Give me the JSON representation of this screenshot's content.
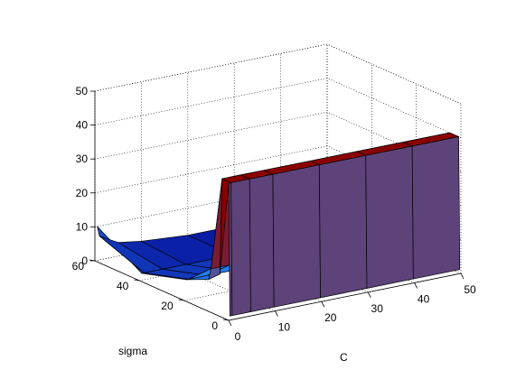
{
  "chart_data": {
    "type": "surface3d",
    "xlabel": "C",
    "ylabel": "sigma",
    "zlabel": "",
    "x_ticks": [
      0,
      10,
      20,
      30,
      40,
      50
    ],
    "y_ticks": [
      0,
      20,
      40,
      60
    ],
    "z_ticks": [
      0,
      10,
      20,
      30,
      40,
      50
    ],
    "xlim": [
      0,
      50
    ],
    "ylim": [
      0,
      60
    ],
    "zlim": [
      0,
      50
    ],
    "grid": true,
    "colormap_low": "#00008c",
    "colormap_mid": "#2b8cff",
    "colormap_high": "#8b0000",
    "surface_x": [
      0.5,
      1,
      5,
      10,
      20,
      30,
      40,
      50
    ],
    "surface_y": [
      0.5,
      1,
      5,
      10,
      20,
      40,
      60
    ],
    "surface_z": [
      [
        1,
        1,
        1,
        1,
        1,
        1,
        1,
        1
      ],
      [
        40,
        40,
        40,
        40,
        40,
        40,
        40,
        40
      ],
      [
        12,
        40,
        40,
        40,
        40,
        40,
        40,
        40
      ],
      [
        9,
        12,
        12,
        12,
        12,
        12,
        12,
        12
      ],
      [
        6,
        6,
        6,
        6,
        6,
        6,
        6,
        6
      ],
      [
        2,
        2,
        2,
        2,
        2,
        2,
        2,
        2
      ],
      [
        10,
        7,
        4,
        3,
        2,
        2,
        2,
        2
      ]
    ]
  }
}
